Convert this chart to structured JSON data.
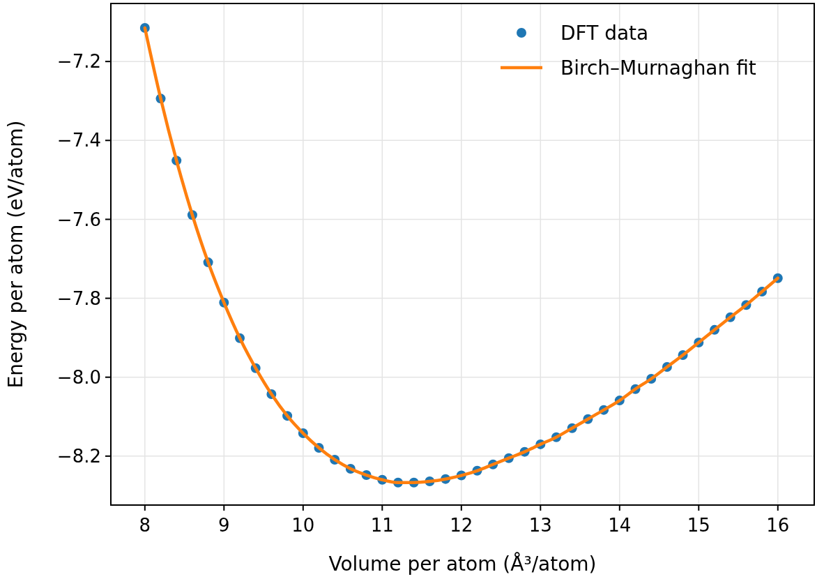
{
  "chart_data": {
    "type": "scatter",
    "xlabel": "Volume per atom (Å³/atom)",
    "ylabel": "Energy per atom (eV/atom)",
    "x": [
      8.0,
      8.2,
      8.4,
      8.6,
      8.8,
      9.0,
      9.2,
      9.4,
      9.6,
      9.8,
      10.0,
      10.2,
      10.4,
      10.6,
      10.8,
      11.0,
      11.2,
      11.4,
      11.6,
      11.8,
      12.0,
      12.2,
      12.4,
      12.6,
      12.8,
      13.0,
      13.2,
      13.4,
      13.6,
      13.8,
      14.0,
      14.2,
      14.4,
      14.6,
      14.8,
      15.0,
      15.2,
      15.4,
      15.6,
      15.8,
      16.0
    ],
    "series": [
      {
        "name": "DFT data",
        "marker": "circle",
        "color": "#1f77b4",
        "values": [
          -7.115,
          -7.294,
          -7.451,
          -7.589,
          -7.709,
          -7.811,
          -7.901,
          -7.977,
          -8.043,
          -8.098,
          -8.142,
          -8.179,
          -8.209,
          -8.232,
          -8.248,
          -8.26,
          -8.267,
          -8.267,
          -8.264,
          -8.258,
          -8.249,
          -8.237,
          -8.221,
          -8.205,
          -8.189,
          -8.17,
          -8.152,
          -8.129,
          -8.106,
          -8.083,
          -8.059,
          -8.03,
          -8.004,
          -7.974,
          -7.944,
          -7.912,
          -7.88,
          -7.848,
          -7.817,
          -7.783,
          -7.749
        ]
      },
      {
        "name": "Birch–Murnaghan fit",
        "type": "line",
        "marker": "none",
        "line_style": "solid",
        "color": "#ff7f0e",
        "values": [
          -7.115,
          -7.294,
          -7.451,
          -7.589,
          -7.709,
          -7.811,
          -7.901,
          -7.977,
          -8.043,
          -8.098,
          -8.142,
          -8.179,
          -8.209,
          -8.232,
          -8.248,
          -8.26,
          -8.267,
          -8.267,
          -8.264,
          -8.258,
          -8.249,
          -8.237,
          -8.221,
          -8.205,
          -8.189,
          -8.17,
          -8.152,
          -8.129,
          -8.106,
          -8.083,
          -8.059,
          -8.03,
          -8.004,
          -7.974,
          -7.944,
          -7.912,
          -7.88,
          -7.848,
          -7.817,
          -7.783,
          -7.749
        ]
      }
    ],
    "xlim": [
      7.57,
      16.46
    ],
    "ylim": [
      -8.324,
      -7.053
    ],
    "xticks": [
      8,
      9,
      10,
      11,
      12,
      13,
      14,
      15,
      16
    ],
    "yticks": [
      {
        "value": -8.2,
        "label": "−8.2"
      },
      {
        "value": -8.0,
        "label": "−8.0"
      },
      {
        "value": -7.8,
        "label": "−7.8"
      },
      {
        "value": -7.6,
        "label": "−7.6"
      },
      {
        "value": -7.4,
        "label": "−7.4"
      },
      {
        "value": -7.2,
        "label": "−7.2"
      }
    ],
    "grid": true,
    "legend": "top right"
  }
}
